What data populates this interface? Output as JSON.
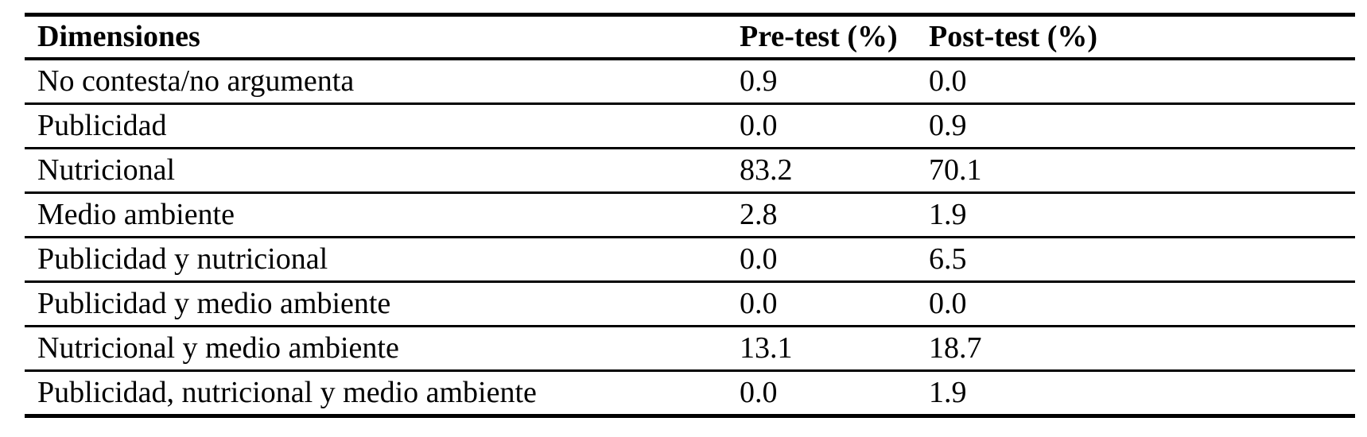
{
  "page": {
    "background_color": "#ffffff",
    "text_color": "#000000",
    "rule_color": "#000000"
  },
  "table": {
    "columns": [
      {
        "label": "Dimensiones"
      },
      {
        "label": "Pre-test (%)"
      },
      {
        "label": "Post-test (%)"
      }
    ],
    "rows": [
      {
        "dimension": "No contesta/no argumenta",
        "pre_test": "0.9",
        "post_test": "0.0"
      },
      {
        "dimension": "Publicidad",
        "pre_test": "0.0",
        "post_test": "0.9"
      },
      {
        "dimension": "Nutricional",
        "pre_test": "83.2",
        "post_test": "70.1"
      },
      {
        "dimension": "Medio ambiente",
        "pre_test": "2.8",
        "post_test": "1.9"
      },
      {
        "dimension": "Publicidad y nutricional",
        "pre_test": "0.0",
        "post_test": "6.5"
      },
      {
        "dimension": "Publicidad y medio ambiente",
        "pre_test": "0.0",
        "post_test": "0.0"
      },
      {
        "dimension": "Nutricional y medio ambiente",
        "pre_test": "13.1",
        "post_test": "18.7"
      },
      {
        "dimension": "Publicidad, nutricional y medio ambiente",
        "pre_test": "0.0",
        "post_test": "1.9"
      }
    ]
  },
  "chart_data": {
    "type": "table",
    "title": "",
    "categories": [
      "No contesta/no argumenta",
      "Publicidad",
      "Nutricional",
      "Medio ambiente",
      "Publicidad y nutricional",
      "Publicidad y medio ambiente",
      "Nutricional y medio ambiente",
      "Publicidad, nutricional y medio ambiente"
    ],
    "series": [
      {
        "name": "Pre-test (%)",
        "values": [
          0.9,
          0.0,
          83.2,
          2.8,
          0.0,
          0.0,
          13.1,
          0.0
        ]
      },
      {
        "name": "Post-test (%)",
        "values": [
          0.0,
          0.9,
          70.1,
          1.9,
          6.5,
          0.0,
          18.7,
          1.9
        ]
      }
    ]
  }
}
